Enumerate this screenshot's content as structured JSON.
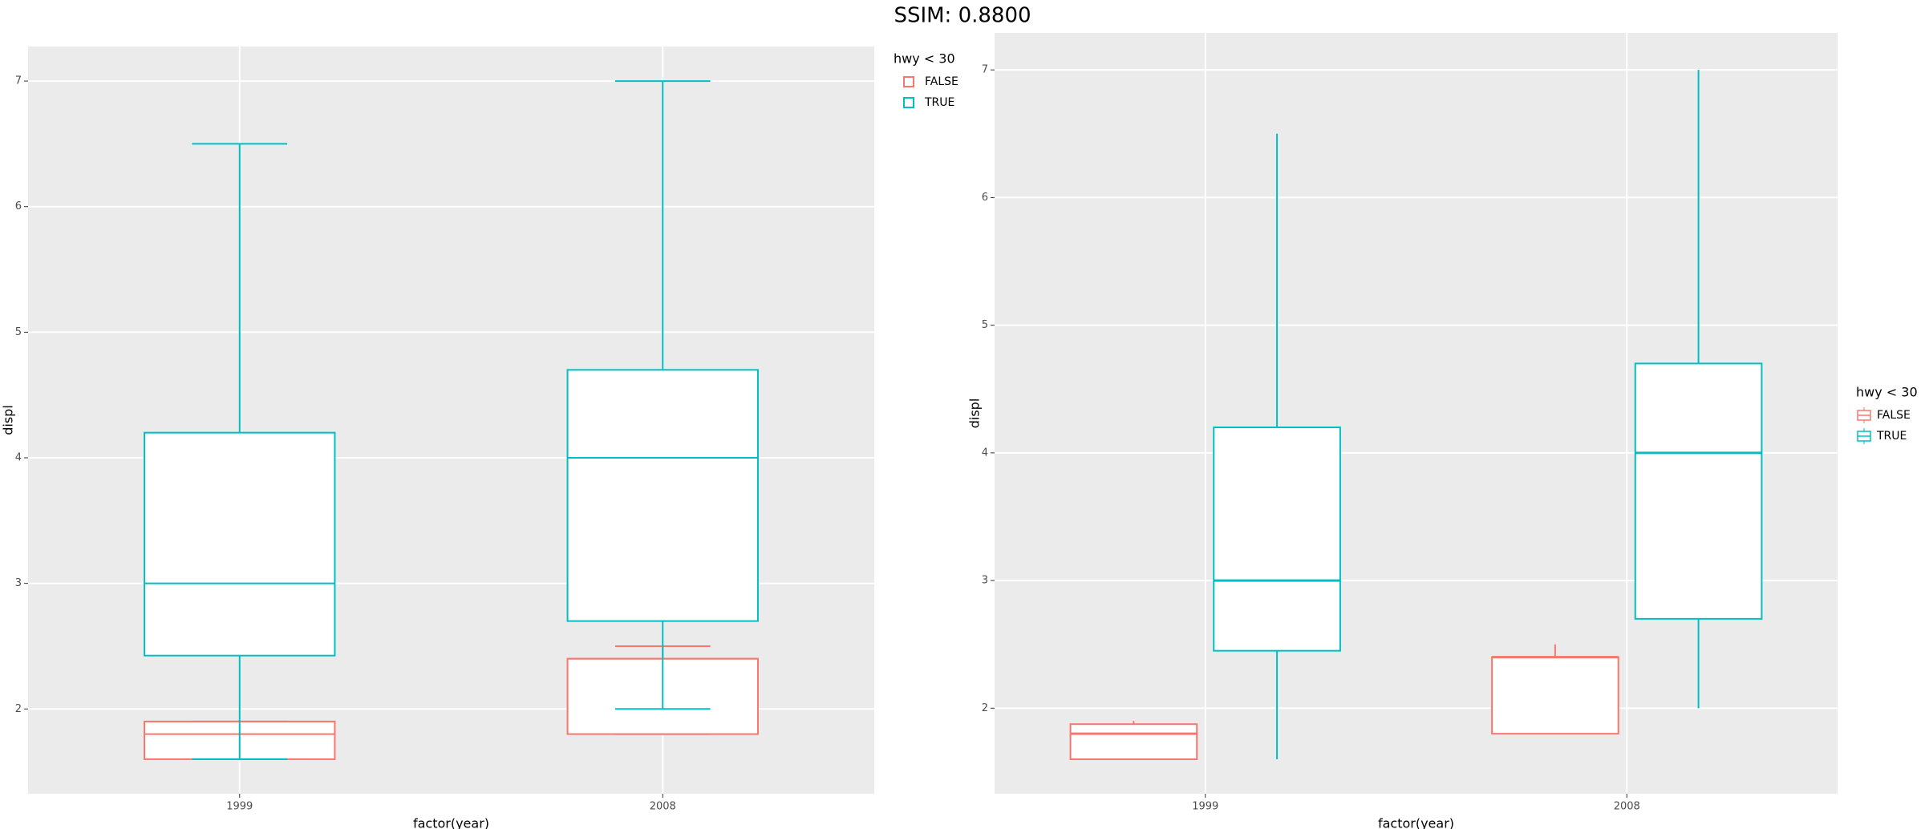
{
  "title": "SSIM: 0.8800",
  "chart_data": [
    {
      "type": "boxplot",
      "dodge": false,
      "whisker_caps": true,
      "legend": "right-top",
      "x_label": "factor(year)",
      "y_label": "displ",
      "legend_title": "hwy < 30",
      "categories": [
        "1999",
        "2008"
      ],
      "ylim": [
        1.325,
        7.275
      ],
      "yticks": [
        2,
        3,
        4,
        5,
        6,
        7
      ],
      "grid": true,
      "series": [
        {
          "name": "FALSE",
          "color": "#F8766D",
          "min": [
            1.6,
            1.8
          ],
          "q1": [
            1.6,
            1.8
          ],
          "median": [
            1.8,
            2.4
          ],
          "q3": [
            1.9,
            2.4
          ],
          "max": [
            1.9,
            2.5
          ]
        },
        {
          "name": "TRUE",
          "color": "#00BFC4",
          "min": [
            1.6,
            2.0
          ],
          "q1": [
            2.425,
            2.7
          ],
          "median": [
            3.0,
            4.0
          ],
          "q3": [
            4.2,
            4.7
          ],
          "max": [
            6.5,
            7.0
          ]
        }
      ]
    },
    {
      "type": "boxplot",
      "dodge": true,
      "whisker_caps": false,
      "legend": "right",
      "x_label": "factor(year)",
      "y_label": "displ",
      "legend_title": "hwy < 30",
      "categories": [
        "1999",
        "2008"
      ],
      "ylim": [
        1.33,
        7.29
      ],
      "yticks": [
        2,
        3,
        4,
        5,
        6,
        7
      ],
      "grid": true,
      "series": [
        {
          "name": "FALSE",
          "color": "#F8766D",
          "min": [
            1.6,
            1.8
          ],
          "q1": [
            1.6,
            1.8
          ],
          "median": [
            1.8,
            2.4
          ],
          "q3": [
            1.875,
            2.4
          ],
          "max": [
            1.9,
            2.5
          ]
        },
        {
          "name": "TRUE",
          "color": "#00BFC4",
          "min": [
            1.6,
            2.0
          ],
          "q1": [
            2.45,
            2.7
          ],
          "median": [
            3.0,
            4.0
          ],
          "q3": [
            4.2,
            4.7
          ],
          "max": [
            6.5,
            7.0
          ]
        }
      ]
    }
  ]
}
